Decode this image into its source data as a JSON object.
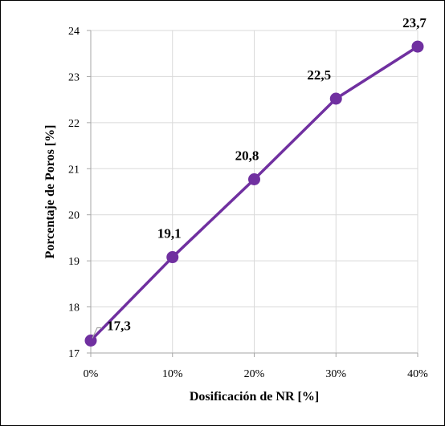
{
  "chart_data": {
    "type": "line",
    "x": [
      0,
      10,
      20,
      30,
      40
    ],
    "x_tick_labels": [
      "0%",
      "10%",
      "20%",
      "30%",
      "40%"
    ],
    "xlim": [
      0,
      40
    ],
    "y_ticks": [
      "17",
      "18",
      "19",
      "20",
      "21",
      "22",
      "23",
      "24"
    ],
    "ylim": [
      17,
      24
    ],
    "series": [
      {
        "values": [
          17.27,
          19.08,
          20.77,
          22.52,
          23.65
        ],
        "data_labels": [
          "17,3",
          "19,1",
          "20,8",
          "22,5",
          "23,7"
        ],
        "color": "#7030A0"
      }
    ],
    "xlabel": "Dosificación de NR [%]",
    "ylabel": "Porcentaje de Poros [%]",
    "grid": true,
    "legend": "none"
  }
}
